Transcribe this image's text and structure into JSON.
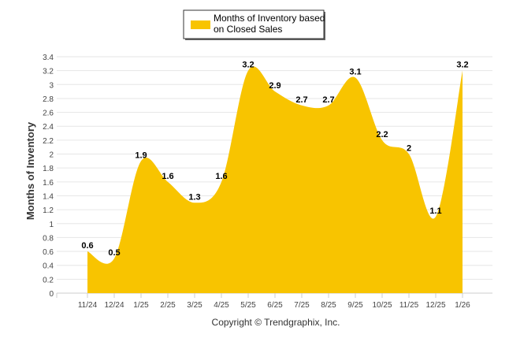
{
  "chart_data": {
    "type": "area",
    "title": "",
    "legend": {
      "label_line1": "Months of Inventory based",
      "label_line2": "on Closed Sales",
      "placement": "top-center"
    },
    "xlabel": "",
    "ylabel": "Months of Inventory",
    "ylim": [
      0,
      3.4
    ],
    "yticks": [
      "0",
      "0.2",
      "0.4",
      "0.6",
      "0.8",
      "1",
      "1.2",
      "1.4",
      "1.6",
      "1.8",
      "2",
      "2.2",
      "2.4",
      "2.6",
      "2.8",
      "3",
      "3.2",
      "3.4"
    ],
    "categories": [
      "11/24",
      "12/24",
      "1/25",
      "2/25",
      "3/25",
      "4/25",
      "5/25",
      "6/25",
      "7/25",
      "8/25",
      "9/25",
      "10/25",
      "11/25",
      "12/25",
      "1/26"
    ],
    "values": [
      0.6,
      0.5,
      1.9,
      1.6,
      1.3,
      1.6,
      3.2,
      2.9,
      2.7,
      2.7,
      3.1,
      2.2,
      2,
      1.1,
      3.2
    ],
    "data_labels": [
      "0.6",
      "0.5",
      "1.9",
      "1.6",
      "1.3",
      "1.6",
      "3.2",
      "2.9",
      "2.7",
      "2.7",
      "3.1",
      "2.2",
      "2",
      "1.1",
      "3.2"
    ],
    "grid": true,
    "color": "#F8C400",
    "footer": "Copyright © Trendgraphix, Inc."
  }
}
